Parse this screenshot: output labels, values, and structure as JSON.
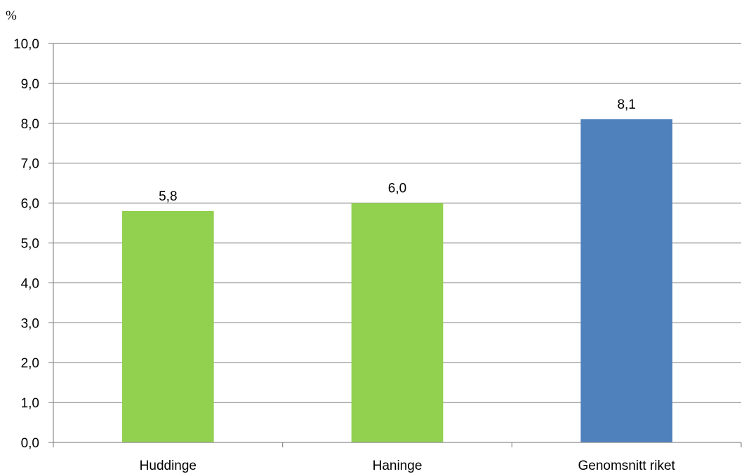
{
  "chart_data": {
    "type": "bar",
    "title": "",
    "xlabel": "",
    "ylabel": "%",
    "categories": [
      "Huddinge",
      "Haninge",
      "Genomsnitt riket"
    ],
    "values": [
      5.8,
      6.0,
      8.1
    ],
    "value_labels": [
      "5,8",
      "6,0",
      "8,1"
    ],
    "bar_colors": [
      "#92d050",
      "#92d050",
      "#4f81bd"
    ],
    "ylim": [
      0,
      10
    ],
    "y_ticks": [
      "0,0",
      "1,0",
      "2,0",
      "3,0",
      "4,0",
      "5,0",
      "6,0",
      "7,0",
      "8,0",
      "9,0",
      "10,0"
    ],
    "y_tick_values": [
      0,
      1,
      2,
      3,
      4,
      5,
      6,
      7,
      8,
      9,
      10
    ],
    "grid": true,
    "legend": "none",
    "colors": {
      "grid": "#8c8c8c",
      "text": "#000000"
    }
  }
}
